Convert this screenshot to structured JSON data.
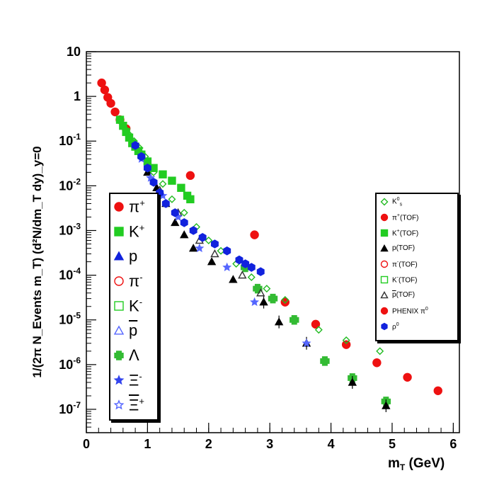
{
  "chart_data": {
    "type": "scatter",
    "title": "",
    "xlabel_main": "m",
    "xlabel_sub": "T",
    "xlabel_rest": " (GeV)",
    "ylabel": "1/(2π N_Events m_T) (d²N/dm_T dy)_y=0",
    "xlim": [
      0,
      6.1
    ],
    "ylim": [
      3e-08,
      10
    ],
    "yscale": "log",
    "x_ticks": [
      0,
      1,
      2,
      3,
      4,
      5,
      6
    ],
    "x_tick_labels": [
      "0",
      "1",
      "2",
      "3",
      "4",
      "5",
      "6"
    ],
    "y_ticks": [
      10,
      1,
      0.1,
      0.01,
      0.001,
      0.0001,
      1e-05,
      1e-06,
      1e-07
    ],
    "y_tick_labels": [
      {
        "base": "10",
        "exp": ""
      },
      {
        "base": "1",
        "exp": ""
      },
      {
        "base": "10",
        "exp": "-1"
      },
      {
        "base": "10",
        "exp": "-2"
      },
      {
        "base": "10",
        "exp": "-3"
      },
      {
        "base": "10",
        "exp": "-4"
      },
      {
        "base": "10",
        "exp": "-5"
      },
      {
        "base": "10",
        "exp": "-6"
      },
      {
        "base": "10",
        "exp": "-7"
      }
    ],
    "series": [
      {
        "name": "PHENIX π0 (red)",
        "marker": "circle",
        "color": "#ee1111",
        "fill": true,
        "size": 5.5,
        "x": [
          0.25,
          0.3,
          0.35,
          0.4,
          0.47,
          0.55,
          0.65,
          1.7,
          2.75,
          3.25,
          3.75,
          4.25,
          4.75,
          5.25,
          5.75
        ],
        "y": [
          2.0,
          1.4,
          0.95,
          0.7,
          0.45,
          0.3,
          0.19,
          0.017,
          0.0008,
          2.5e-05,
          8e-06,
          2.8e-06,
          1.1e-06,
          5.2e-07,
          2.6e-07
        ]
      },
      {
        "name": "Ks0",
        "marker": "diamond",
        "color": "#22bb22",
        "fill": false,
        "size": 4.5,
        "x": [
          0.55,
          0.62,
          0.7,
          0.78,
          0.87,
          0.96,
          1.1,
          1.25,
          1.4,
          1.6,
          1.8,
          2.0,
          2.2,
          2.45,
          2.7,
          2.95,
          3.25,
          3.8,
          4.25,
          4.8
        ],
        "y": [
          0.28,
          0.2,
          0.14,
          0.1,
          0.07,
          0.045,
          0.02,
          0.011,
          0.005,
          0.0025,
          0.0012,
          0.0006,
          0.00035,
          0.00018,
          9e-05,
          5e-05,
          2.8e-05,
          6e-06,
          3.5e-06,
          2e-06
        ]
      },
      {
        "name": "Lambda",
        "marker": "plus",
        "color": "#33bb33",
        "fill": true,
        "size": 6,
        "x": [
          2.6,
          2.8,
          3.05,
          3.4,
          3.9,
          4.35,
          4.9
        ],
        "y": [
          0.00015,
          5e-05,
          3e-05,
          1e-05,
          1.2e-06,
          5e-07,
          1.5e-07
        ]
      },
      {
        "name": "K+ (green squares)",
        "marker": "square",
        "color": "#22cc22",
        "fill": true,
        "size": 5,
        "x": [
          0.55,
          0.6,
          0.65,
          0.7,
          0.75,
          0.8,
          0.85,
          0.9,
          1.0,
          1.1,
          1.25,
          1.4,
          1.55,
          1.65,
          1.7
        ],
        "y": [
          0.3,
          0.22,
          0.16,
          0.12,
          0.09,
          0.075,
          0.06,
          0.05,
          0.035,
          0.025,
          0.018,
          0.013,
          0.009,
          0.006,
          0.005
        ]
      },
      {
        "name": "p(TOF)",
        "marker": "triangle",
        "color": "#000000",
        "fill": true,
        "size": 5,
        "x": [
          1.0,
          1.15,
          1.3,
          1.45,
          1.6,
          1.75,
          2.05,
          2.4,
          2.9,
          3.15,
          3.6,
          4.35,
          4.9
        ],
        "y": [
          0.02,
          0.009,
          0.004,
          0.0015,
          0.0008,
          0.0004,
          0.0002,
          8e-05,
          2.5e-05,
          9e-06,
          3e-06,
          4e-07,
          1.2e-07
        ]
      },
      {
        "name": "pbar(TOF)",
        "marker": "triangle-open",
        "color": "#333333",
        "fill": false,
        "size": 5,
        "x": [
          1.2,
          1.5,
          1.85,
          2.1,
          2.55,
          2.85
        ],
        "y": [
          0.008,
          0.0025,
          0.0006,
          0.0003,
          0.0001,
          4e-05
        ]
      },
      {
        "name": "Xi (stars)",
        "marker": "star",
        "color": "#5566ff",
        "fill": true,
        "size": 5,
        "x": [
          0.9,
          1.05,
          1.25,
          1.5,
          1.85,
          2.3,
          2.75,
          3.6
        ],
        "y": [
          0.04,
          0.015,
          0.006,
          0.002,
          0.0004,
          0.00015,
          2.5e-05,
          3e-06
        ]
      },
      {
        "name": "rho0",
        "marker": "hexagon",
        "color": "#1122dd",
        "fill": true,
        "size": 5.5,
        "x": [
          0.8,
          0.9,
          1.0,
          1.1,
          1.2,
          1.3,
          1.45,
          1.6,
          1.75,
          1.9,
          2.1,
          2.3,
          2.5,
          2.6,
          2.7,
          2.85
        ],
        "y": [
          0.08,
          0.045,
          0.025,
          0.012,
          0.007,
          0.004,
          0.0025,
          0.0015,
          0.001,
          0.0007,
          0.0005,
          0.00035,
          0.00022,
          0.00018,
          0.00015,
          0.00012
        ]
      }
    ]
  },
  "legend_left": [
    {
      "symbol": "circle-red",
      "text": "π",
      "sup": "+"
    },
    {
      "symbol": "square-green",
      "text": "K",
      "sup": "+"
    },
    {
      "symbol": "triangle-blue",
      "text": "p",
      "sup": ""
    },
    {
      "symbol": "circle-open-red",
      "text": "π",
      "sup": "-"
    },
    {
      "symbol": "square-open-green",
      "text": "K",
      "sup": "-"
    },
    {
      "symbol": "triangle-open-blue",
      "text": "p",
      "sup": "",
      "overline": true
    },
    {
      "symbol": "plus-green",
      "text": "Λ",
      "sup": ""
    },
    {
      "symbol": "star-blue",
      "text": "Ξ",
      "sup": "-"
    },
    {
      "symbol": "star-open-blue",
      "text": "Ξ",
      "sup": "+",
      "overline": true
    }
  ],
  "legend_right": [
    {
      "symbol": "diamond-open-green",
      "text": "K",
      "sup": "0",
      "sub": "s"
    },
    {
      "symbol": "circle-red",
      "text": "π",
      "sup": "+",
      "tail": "(TOF)"
    },
    {
      "symbol": "square-green",
      "text": "K",
      "sup": "+",
      "tail": "(TOF)"
    },
    {
      "symbol": "triangle-black",
      "text": "p",
      "sup": "",
      "tail": "(TOF)"
    },
    {
      "symbol": "circle-open-red",
      "text": "π",
      "sup": "-",
      "tail": "(TOF)"
    },
    {
      "symbol": "square-open-green",
      "text": "K",
      "sup": "-",
      "tail": "(TOF)"
    },
    {
      "symbol": "triangle-open-black",
      "text": "p",
      "sup": "",
      "tail": "(TOF)",
      "overline": true
    },
    {
      "symbol": "circle-red",
      "text": "PHENIX π",
      "sup": "0",
      "tail": ""
    },
    {
      "symbol": "hexagon-blue",
      "text": "ρ",
      "sup": "0",
      "tail": ""
    }
  ]
}
